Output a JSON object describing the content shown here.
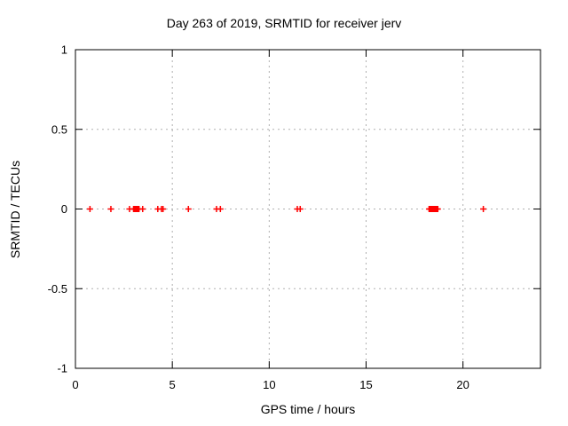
{
  "chart_data": {
    "type": "scatter",
    "title": "Day 263 of 2019, SRMTID for receiver jerv",
    "xlabel": "GPS time / hours",
    "ylabel": "SRMTID / TECUs",
    "xlim": [
      0,
      24
    ],
    "ylim": [
      -1,
      1
    ],
    "xtick_values": [
      0,
      5,
      10,
      15,
      20
    ],
    "xtick_labels": [
      "0",
      "5",
      "10",
      "15",
      "20"
    ],
    "ytick_values": [
      -1,
      -0.5,
      0,
      0.5,
      1
    ],
    "ytick_labels": [
      "-1",
      "-0.5",
      "0",
      "0.5",
      "1"
    ],
    "grid": true,
    "grid_style": "dashed",
    "grid_color": "#b0b0b0",
    "axis_color": "#000000",
    "legend": "none",
    "marker": "plus",
    "marker_color": "#ff0000",
    "marker_size": 7,
    "series": [
      {
        "name": "SRMTID",
        "x": [
          0.75,
          1.83,
          2.79,
          3.0,
          3.04,
          3.08,
          3.12,
          3.16,
          3.2,
          3.24,
          3.28,
          3.47,
          4.25,
          4.44,
          4.52,
          5.83,
          7.28,
          7.48,
          11.45,
          11.6,
          18.25,
          18.3,
          18.35,
          18.4,
          18.45,
          18.5,
          18.55,
          18.6,
          18.65,
          18.7,
          21.05
        ],
        "y": [
          0,
          0,
          0,
          0,
          0,
          0,
          0,
          0,
          0,
          0,
          0,
          0,
          0,
          0,
          0,
          0,
          0,
          0,
          0,
          0,
          0,
          0,
          0,
          0,
          0,
          0,
          0,
          0,
          0,
          0,
          0
        ]
      }
    ]
  }
}
